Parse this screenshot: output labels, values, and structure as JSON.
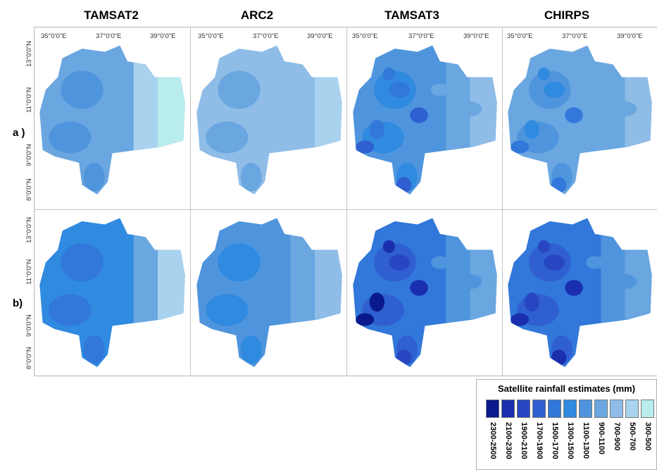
{
  "columns": [
    "TAMSAT2",
    "ARC2",
    "TAMSAT3",
    "CHIRPS"
  ],
  "rows": [
    "a )",
    "b)"
  ],
  "lon_labels": [
    "35°0'0\"E",
    "37°0'0\"E",
    "39°0'0\"E"
  ],
  "lat_labels": [
    "13°0'0\"N",
    "11°0'0\"N",
    "9°0'0\"N",
    "8°0'0\"N"
  ],
  "legend": {
    "title": "Satellite rainfall estimates (mm)",
    "classes": [
      {
        "label": "2300-2500",
        "color": "#0a1a8c"
      },
      {
        "label": "2100-2300",
        "color": "#1a2fae"
      },
      {
        "label": "1900-2100",
        "color": "#2846c2"
      },
      {
        "label": "1700-1900",
        "color": "#2f5fd0"
      },
      {
        "label": "1500-1700",
        "color": "#3277da"
      },
      {
        "label": "1300-1500",
        "color": "#2f8ae0"
      },
      {
        "label": "1100-1300",
        "color": "#4f95dd"
      },
      {
        "label": "900-1100",
        "color": "#6aa6e0"
      },
      {
        "label": "700-900",
        "color": "#8fbde8"
      },
      {
        "label": "500-700",
        "color": "#a8d2ee"
      },
      {
        "label": "300-500",
        "color": "#b9ecec"
      }
    ]
  }
}
